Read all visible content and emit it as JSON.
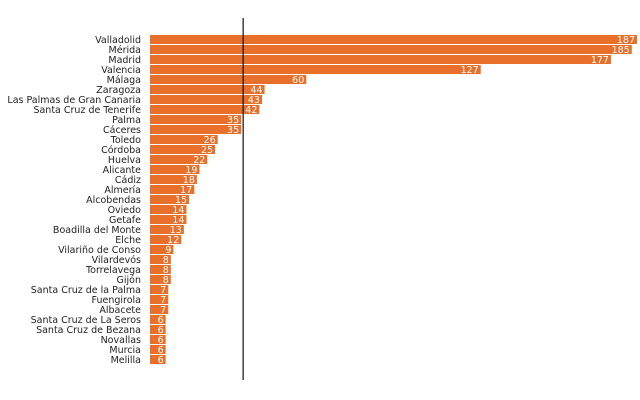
{
  "chart_data": {
    "type": "bar",
    "orientation": "horizontal",
    "categories": [
      "Valladolid",
      "Mérida",
      "Madrid",
      "Valencia",
      "Málaga",
      "Zaragoza",
      "Las Palmas de Gran Canaria",
      "Santa Cruz de Tenerife",
      "Palma",
      "Cáceres",
      "Toledo",
      "Córdoba",
      "Huelva",
      "Alicante",
      "Cádiz",
      "Almería",
      "Alcobendas",
      "Oviedo",
      "Getafe",
      "Boadilla del Monte",
      "Elche",
      "Vilariño de Conso",
      "Vilardevós",
      "Torrelavega",
      "Gijón",
      "Santa Cruz de la Palma",
      "Fuengirola",
      "Albacete",
      "Santa Cruz de La Seros",
      "Santa Cruz de Bezana",
      "Novallas",
      "Murcia",
      "Melilla"
    ],
    "values": [
      187,
      185,
      177,
      127,
      60,
      44,
      43,
      42,
      35,
      35,
      26,
      25,
      22,
      19,
      18,
      17,
      15,
      14,
      14,
      13,
      12,
      9,
      8,
      8,
      8,
      7,
      7,
      7,
      6,
      6,
      6,
      6,
      6
    ],
    "xlim": [
      0,
      187
    ],
    "reference_line_value": 35,
    "title": "",
    "xlabel": "",
    "ylabel": "",
    "grid": false,
    "legend": "none",
    "bar_color": "#e8702a",
    "label_color": "#222222",
    "value_label_color": "#ffffff",
    "reference_line_color": "#111111"
  }
}
